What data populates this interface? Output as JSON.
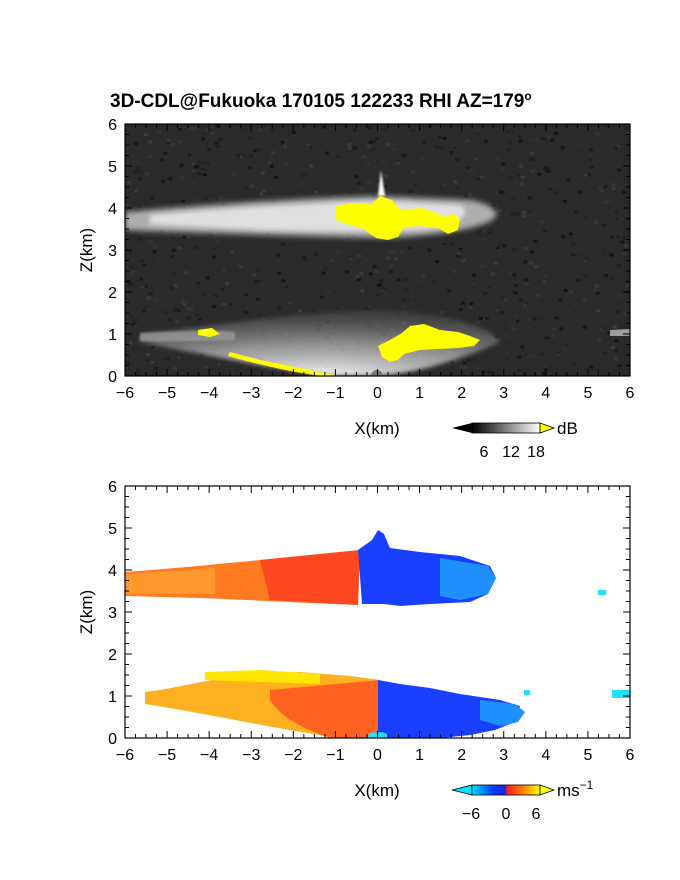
{
  "title": "3D-CDL@Fukuoka 170105 122233 RHI AZ=179",
  "title_superscript": "o",
  "chart_data": [
    {
      "type": "heatmap",
      "panel": "reflectivity",
      "xlabel": "X(km)",
      "ylabel": "Z(km)",
      "xlim": [
        -6,
        6
      ],
      "ylim": [
        0,
        6
      ],
      "xticks": [
        "−6",
        "−5",
        "−4",
        "−3",
        "−2",
        "−1",
        "0",
        "1",
        "2",
        "3",
        "4",
        "5",
        "6"
      ],
      "yticks": [
        "0",
        "1",
        "2",
        "3",
        "4",
        "5",
        "6"
      ],
      "background_color": "#2a2a2a",
      "colorbar": {
        "unit": "dB",
        "ticks": [
          "6",
          "12",
          "18"
        ],
        "low_color": "#000000",
        "high_color": "#ffffff",
        "overflow_color": "#ffff00"
      },
      "features": [
        {
          "name": "upper echo layer",
          "x_range": [
            -6.0,
            2.9
          ],
          "z_range": [
            3.3,
            4.2
          ]
        },
        {
          "name": "lower echo layer",
          "x_range": [
            -5.8,
            2.5
          ],
          "z_range": [
            0.0,
            1.1
          ]
        },
        {
          "name": "saturated region upper",
          "x_range": [
            -1.0,
            2.0
          ],
          "z_range": [
            3.4,
            4.2
          ]
        },
        {
          "name": "saturated region lower",
          "x_range": [
            0.0,
            2.4
          ],
          "z_range": [
            0.6,
            1.0
          ]
        }
      ]
    },
    {
      "type": "heatmap",
      "panel": "doppler velocity",
      "xlabel": "X(km)",
      "ylabel": "Z(km)",
      "xlim": [
        -6,
        6
      ],
      "ylim": [
        0,
        6
      ],
      "xticks": [
        "−6",
        "−5",
        "−4",
        "−3",
        "−2",
        "−1",
        "0",
        "1",
        "2",
        "3",
        "4",
        "5",
        "6"
      ],
      "yticks": [
        "0",
        "1",
        "2",
        "3",
        "4",
        "5",
        "6"
      ],
      "background_color": "#ffffff",
      "colorbar": {
        "unit": "ms",
        "unit_superscript": "−1",
        "ticks": [
          "−6",
          "0",
          "6"
        ],
        "colors": [
          "#00e0ff",
          "#0040ff",
          "#2020e0",
          "#ff2020",
          "#ff8000",
          "#ffff00"
        ]
      },
      "features": [
        {
          "name": "upper layer receding",
          "x_range": [
            -6.0,
            -0.5
          ],
          "z_range": [
            3.5,
            4.3
          ],
          "velocity_sign": "positive"
        },
        {
          "name": "upper layer approaching",
          "x_range": [
            -0.5,
            2.9
          ],
          "z_range": [
            3.3,
            4.9
          ],
          "velocity_sign": "negative"
        },
        {
          "name": "lower layer receding",
          "x_range": [
            -5.6,
            0.0
          ],
          "z_range": [
            0.0,
            1.6
          ],
          "velocity_sign": "positive"
        },
        {
          "name": "lower layer approaching",
          "x_range": [
            0.0,
            3.5
          ],
          "z_range": [
            0.0,
            1.1
          ],
          "velocity_sign": "negative"
        }
      ]
    }
  ]
}
